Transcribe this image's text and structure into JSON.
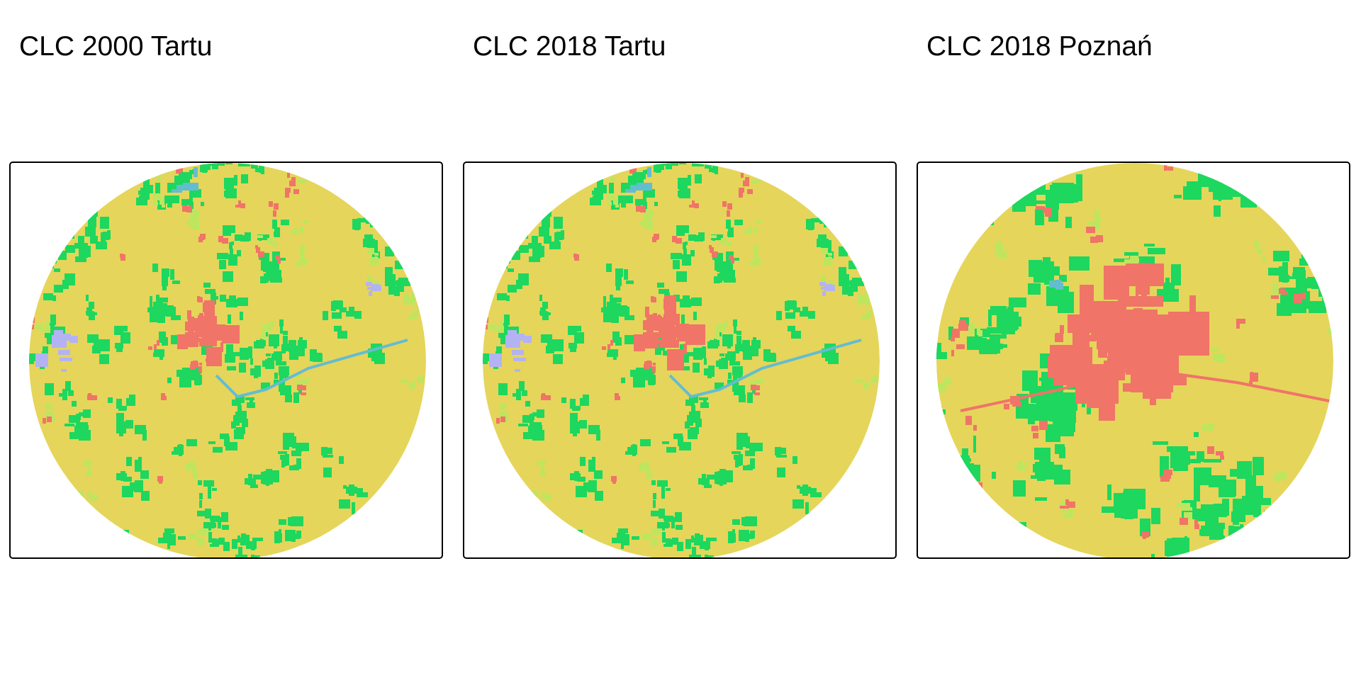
{
  "panels": [
    {
      "title": "CLC 2000 Tartu",
      "city_size": 0.14,
      "seed": 11
    },
    {
      "title": "CLC 2018 Tartu",
      "city_size": 0.16,
      "seed": 11
    },
    {
      "title": "CLC 2018 Poznań",
      "city_size": 0.36,
      "seed": 47
    }
  ],
  "colors": {
    "agricultural": "#E5D55B",
    "forest": "#1DD75F",
    "urban": "#F07468",
    "semi_natural": "#BDE65E",
    "wetland": "#B3B3F4",
    "water": "#63BDD0"
  }
}
